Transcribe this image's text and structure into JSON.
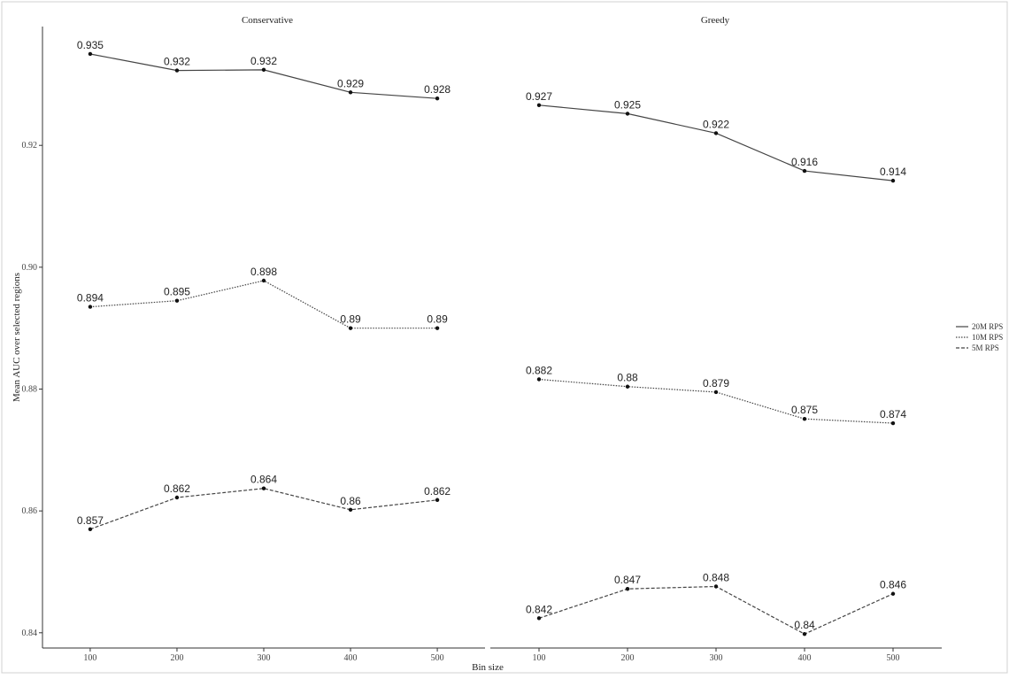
{
  "chart_data": {
    "type": "line",
    "xlabel": "Bin size",
    "ylabel": "Mean AUC over selected regions",
    "x": [
      100,
      200,
      300,
      400,
      500
    ],
    "x_ticks": [
      "100",
      "200",
      "300",
      "400",
      "500"
    ],
    "xlim": [
      45,
      555
    ],
    "ylim": [
      0.8375,
      0.9395
    ],
    "y_ticks": [
      "0.84",
      "0.86",
      "0.88",
      "0.90",
      "0.92"
    ],
    "grid": false,
    "legend_position": "right",
    "panels": [
      {
        "title": "Conservative",
        "series": [
          {
            "name": "20M RPS",
            "line_style": "solid",
            "values": [
              0.935,
              0.9323,
              0.9324,
              0.9287,
              0.9277
            ],
            "labels": [
              "0.935",
              "0.932",
              "0.932",
              "0.929",
              "0.928"
            ]
          },
          {
            "name": "10M RPS",
            "line_style": "dotted",
            "values": [
              0.8935,
              0.8945,
              0.8978,
              0.89,
              0.89
            ],
            "labels": [
              "0.894",
              "0.895",
              "0.898",
              "0.89",
              "0.89"
            ]
          },
          {
            "name": "5M RPS",
            "line_style": "dashed",
            "values": [
              0.857,
              0.8622,
              0.8637,
              0.8602,
              0.8618
            ],
            "labels": [
              "0.857",
              "0.862",
              "0.864",
              "0.86",
              "0.862"
            ]
          }
        ]
      },
      {
        "title": "Greedy",
        "series": [
          {
            "name": "20M RPS",
            "line_style": "solid",
            "values": [
              0.9266,
              0.9252,
              0.922,
              0.9158,
              0.9142
            ],
            "labels": [
              "0.927",
              "0.925",
              "0.922",
              "0.916",
              "0.914"
            ]
          },
          {
            "name": "10M RPS",
            "line_style": "dotted",
            "values": [
              0.8816,
              0.8804,
              0.8795,
              0.8751,
              0.8744
            ],
            "labels": [
              "0.882",
              "0.88",
              "0.879",
              "0.875",
              "0.874"
            ]
          },
          {
            "name": "5M RPS",
            "line_style": "dashed",
            "values": [
              0.8424,
              0.8472,
              0.8476,
              0.8398,
              0.8464
            ],
            "labels": [
              "0.842",
              "0.847",
              "0.848",
              "0.84",
              "0.846"
            ]
          }
        ]
      }
    ],
    "legend": [
      "20M RPS",
      "10M RPS",
      "5M RPS"
    ]
  }
}
